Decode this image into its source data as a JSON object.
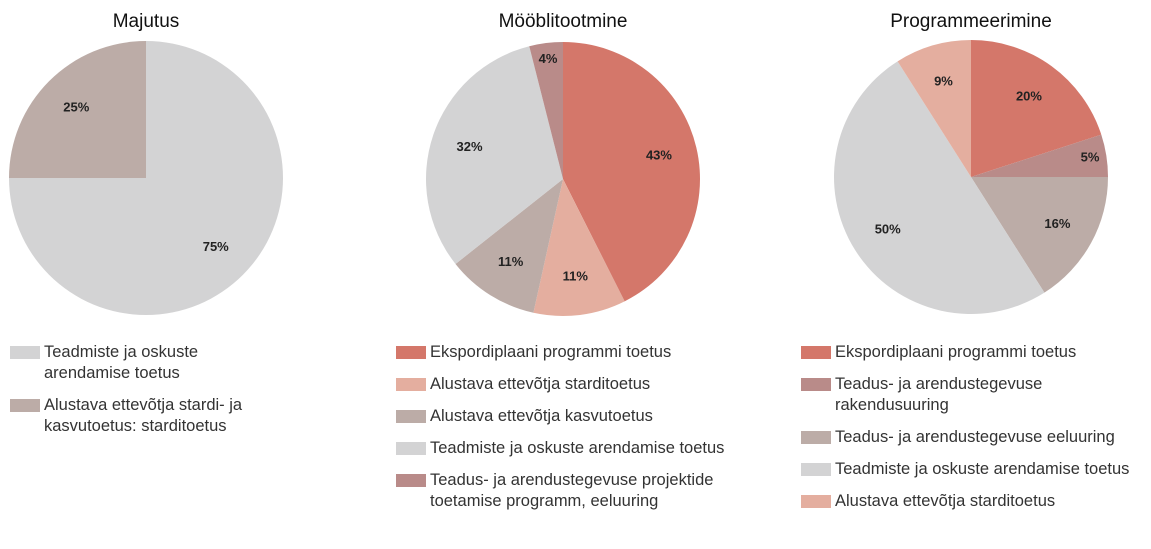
{
  "chart_data": [
    {
      "type": "pie",
      "title": "Majutus",
      "categories": [
        "Teadmiste ja oskuste arendamise toetus",
        "Alustava ettevõtja stardi- ja kasvutoetus: starditoetus"
      ],
      "values": [
        75,
        25
      ],
      "value_labels": [
        "75%",
        "25%"
      ],
      "colors": [
        "#d3d3d4",
        "#bcaca7"
      ]
    },
    {
      "type": "pie",
      "title": "Mööblitootmine",
      "categories": [
        "Ekspordiplaani programmi toetus",
        "Alustava ettevõtja starditoetus",
        "Alustava ettevõtja kasvutoetus",
        "Teadmiste ja oskuste arendamise toetus",
        "Teadus- ja arendustegevuse projektide toetamise programm, eeluuring"
      ],
      "values": [
        43,
        11,
        11,
        32,
        4
      ],
      "value_labels": [
        "43%",
        "11%",
        "11%",
        "32%",
        "4%"
      ],
      "colors": [
        "#d4776a",
        "#e4ae9f",
        "#bcaca7",
        "#d3d3d4",
        "#b98b89"
      ]
    },
    {
      "type": "pie",
      "title": "Programmeerimine",
      "categories": [
        "Ekspordiplaani programmi toetus",
        "Teadus- ja arendustegevuse rakendusuuring",
        "Teadus- ja arendustegevuse eeluuring",
        "Teadmiste ja oskuste arendamise toetus",
        "Alustava ettevõtja starditoetus"
      ],
      "values": [
        20,
        5,
        16,
        50,
        9
      ],
      "value_labels": [
        "20%",
        "5%",
        "16%",
        "50%",
        "9%"
      ],
      "colors": [
        "#d4776a",
        "#b98b89",
        "#bcaca7",
        "#d3d3d4",
        "#e4ae9f"
      ]
    }
  ]
}
